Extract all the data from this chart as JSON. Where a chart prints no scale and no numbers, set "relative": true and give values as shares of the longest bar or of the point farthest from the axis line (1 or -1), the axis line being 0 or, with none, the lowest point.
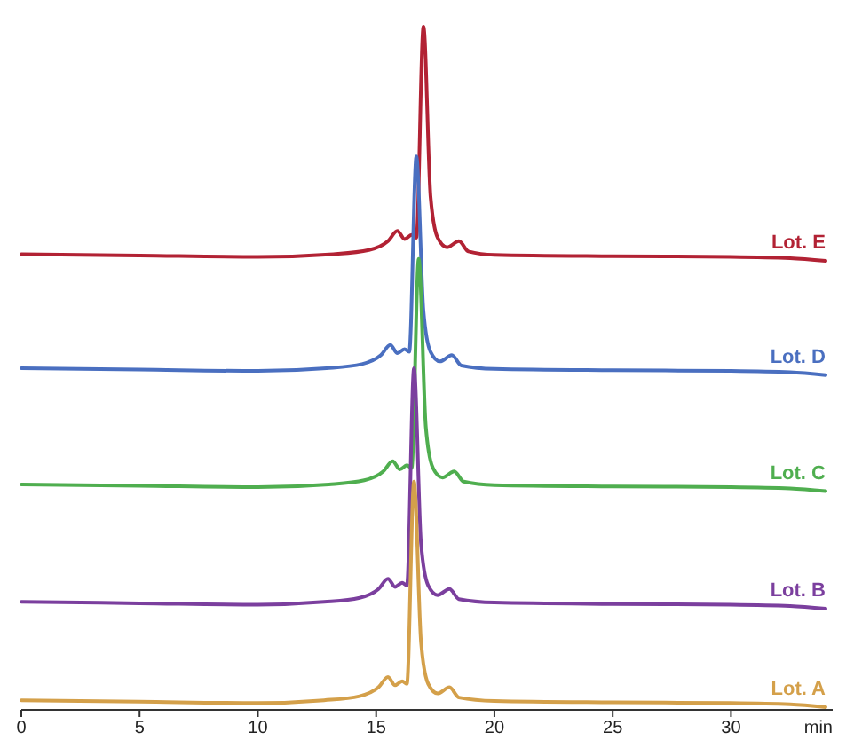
{
  "chart_data": {
    "type": "line",
    "relative": true,
    "xlabel": "min",
    "xlim": [
      0,
      34.3
    ],
    "xticks": [
      0,
      5,
      10,
      15,
      20,
      25,
      30
    ],
    "series": [
      {
        "name": "Lot. E",
        "color": "#b22234",
        "x": [
          0,
          5,
          10,
          13.2,
          14.7,
          15.5,
          15.9,
          16.2,
          16.5,
          16.7,
          17,
          17.3,
          17.6,
          18,
          18.5,
          18.9,
          20,
          25,
          30,
          32.5,
          34
        ],
        "values": [
          0.667,
          0.665,
          0.663,
          0.667,
          0.673,
          0.686,
          0.701,
          0.689,
          0.695,
          0.691,
          1,
          0.751,
          0.691,
          0.677,
          0.686,
          0.671,
          0.666,
          0.664,
          0.663,
          0.661,
          0.657
        ]
      },
      {
        "name": "Lot. D",
        "color": "#4a6fc0",
        "x": [
          0,
          5,
          10,
          12.9,
          14.4,
          15.2,
          15.6,
          15.9,
          16.2,
          16.4,
          16.7,
          17,
          17.3,
          17.7,
          18.2,
          18.6,
          20,
          25,
          30,
          32.5,
          34
        ],
        "values": [
          0.5,
          0.498,
          0.496,
          0.5,
          0.506,
          0.519,
          0.534,
          0.522,
          0.528,
          0.524,
          0.81,
          0.584,
          0.524,
          0.51,
          0.519,
          0.504,
          0.499,
          0.497,
          0.496,
          0.494,
          0.49
        ]
      },
      {
        "name": "Lot. C",
        "color": "#4fae4f",
        "x": [
          0,
          5,
          10,
          13,
          14.5,
          15.3,
          15.7,
          16,
          16.3,
          16.5,
          16.8,
          17.1,
          17.4,
          17.8,
          18.3,
          18.7,
          20,
          25,
          30,
          32.5,
          34
        ],
        "values": [
          0.33,
          0.328,
          0.326,
          0.33,
          0.336,
          0.349,
          0.364,
          0.352,
          0.358,
          0.354,
          0.66,
          0.414,
          0.354,
          0.34,
          0.349,
          0.334,
          0.329,
          0.327,
          0.326,
          0.324,
          0.32
        ]
      },
      {
        "name": "Lot. B",
        "color": "#7b3f9e",
        "x": [
          0,
          5,
          10,
          12.8,
          14.3,
          15.1,
          15.5,
          15.8,
          16.1,
          16.3,
          16.6,
          16.9,
          17.2,
          17.6,
          18.1,
          18.5,
          20,
          25,
          30,
          32.5,
          34
        ],
        "values": [
          0.158,
          0.156,
          0.154,
          0.158,
          0.164,
          0.177,
          0.192,
          0.18,
          0.186,
          0.182,
          0.5,
          0.242,
          0.182,
          0.168,
          0.177,
          0.162,
          0.157,
          0.155,
          0.154,
          0.152,
          0.148
        ]
      },
      {
        "name": "Lot. A",
        "color": "#d4a04a",
        "x": [
          0,
          5,
          10,
          12.8,
          14.3,
          15.1,
          15.5,
          15.8,
          16.1,
          16.3,
          16.6,
          16.9,
          17.2,
          17.6,
          18.1,
          18.5,
          20,
          25,
          30,
          32.5,
          34
        ],
        "values": [
          0.014,
          0.012,
          0.01,
          0.014,
          0.02,
          0.033,
          0.048,
          0.036,
          0.042,
          0.038,
          0.334,
          0.098,
          0.038,
          0.024,
          0.033,
          0.018,
          0.013,
          0.011,
          0.01,
          0.008,
          0.004
        ]
      }
    ]
  }
}
